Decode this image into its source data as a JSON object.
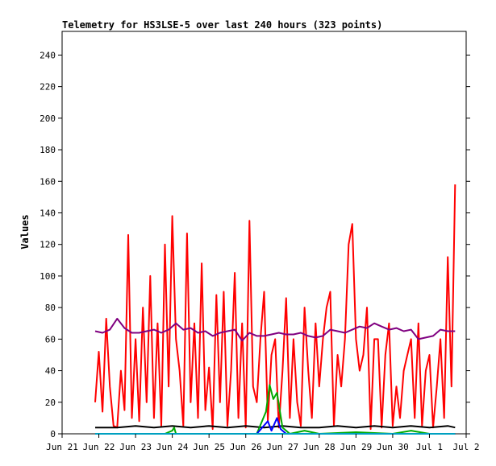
{
  "chart_data": {
    "type": "line",
    "title": "Telemetry for HS3LSE-5 over last 240 hours (323 points)",
    "xlabel": "",
    "ylabel": "Values",
    "x_ticks": [
      "Jun 21",
      "Jun 22",
      "Jun 23",
      "Jun 24",
      "Jun 25",
      "Jun 26",
      "Jun 27",
      "Jun 28",
      "Jun 29",
      "Jun 30",
      "Jul 1",
      "Jul 2"
    ],
    "x_range": [
      "Jun 21 00:00",
      "Jul 2 00:00"
    ],
    "y_ticks": [
      0,
      20,
      40,
      60,
      80,
      100,
      120,
      140,
      160,
      180,
      200,
      220,
      240
    ],
    "ylim": [
      0,
      255
    ],
    "grid": false,
    "legend": "none",
    "series": [
      {
        "color": "#ff0000",
        "x_days": [
          0.9,
          1.0,
          1.1,
          1.2,
          1.3,
          1.4,
          1.5,
          1.6,
          1.7,
          1.8,
          1.9,
          2.0,
          2.1,
          2.2,
          2.3,
          2.4,
          2.5,
          2.6,
          2.7,
          2.8,
          2.9,
          3.0,
          3.1,
          3.2,
          3.3,
          3.4,
          3.5,
          3.6,
          3.7,
          3.8,
          3.9,
          4.0,
          4.1,
          4.2,
          4.3,
          4.4,
          4.5,
          4.6,
          4.7,
          4.8,
          4.9,
          5.0,
          5.1,
          5.2,
          5.3,
          5.4,
          5.5,
          5.6,
          5.7,
          5.8,
          5.9,
          6.0,
          6.1,
          6.2,
          6.3,
          6.4,
          6.5,
          6.6,
          6.7,
          6.8,
          6.9,
          7.0,
          7.1,
          7.2,
          7.3,
          7.4,
          7.5,
          7.6,
          7.7,
          7.8,
          7.9,
          8.0,
          8.1,
          8.2,
          8.3,
          8.4,
          8.5,
          8.6,
          8.7,
          8.8,
          8.9,
          9.0,
          9.1,
          9.2,
          9.3,
          9.4,
          9.5,
          9.6,
          9.7,
          9.8,
          9.9,
          10.0,
          10.1,
          10.2,
          10.3,
          10.4,
          10.5,
          10.6,
          10.7
        ],
        "values": [
          20,
          52,
          14,
          73,
          30,
          5,
          4,
          40,
          15,
          126,
          10,
          60,
          8,
          80,
          20,
          100,
          10,
          70,
          5,
          120,
          30,
          138,
          60,
          40,
          5,
          127,
          20,
          70,
          10,
          108,
          15,
          42,
          3,
          88,
          20,
          90,
          5,
          40,
          102,
          10,
          70,
          4,
          135,
          30,
          20,
          60,
          90,
          8,
          50,
          60,
          4,
          40,
          86,
          10,
          60,
          20,
          5,
          80,
          40,
          10,
          70,
          30,
          60,
          80,
          90,
          5,
          50,
          30,
          60,
          120,
          133,
          60,
          40,
          50,
          80,
          3,
          60,
          60,
          4,
          50,
          70,
          5,
          30,
          10,
          40,
          50,
          60,
          10,
          70,
          5,
          40,
          50,
          4,
          30,
          60,
          10,
          112,
          30,
          158
        ]
      },
      {
        "color": "#800080",
        "x_days": [
          0.9,
          1.1,
          1.3,
          1.5,
          1.7,
          1.9,
          2.1,
          2.3,
          2.5,
          2.7,
          2.9,
          3.1,
          3.3,
          3.5,
          3.7,
          3.9,
          4.1,
          4.3,
          4.5,
          4.7,
          4.9,
          5.1,
          5.3,
          5.5,
          5.7,
          5.9,
          6.1,
          6.3,
          6.5,
          6.7,
          6.9,
          7.1,
          7.3,
          7.5,
          7.7,
          7.9,
          8.1,
          8.3,
          8.5,
          8.7,
          8.9,
          9.1,
          9.3,
          9.5,
          9.7,
          9.9,
          10.1,
          10.3,
          10.5,
          10.7
        ],
        "values": [
          65,
          64,
          66,
          73,
          67,
          64,
          64,
          65,
          66,
          64,
          66,
          70,
          66,
          67,
          64,
          65,
          62,
          64,
          65,
          66,
          59,
          64,
          62,
          62,
          63,
          64,
          63,
          63,
          64,
          62,
          61,
          62,
          66,
          65,
          64,
          66,
          68,
          67,
          70,
          68,
          66,
          67,
          65,
          66,
          60,
          61,
          62,
          66,
          65,
          65
        ]
      },
      {
        "color": "#000000",
        "x_days": [
          0.9,
          1.5,
          2.0,
          2.5,
          3.0,
          3.5,
          4.0,
          4.5,
          5.0,
          5.5,
          6.0,
          6.5,
          7.0,
          7.5,
          8.0,
          8.5,
          9.0,
          9.5,
          10.0,
          10.5,
          10.7
        ],
        "values": [
          4,
          4,
          5,
          4,
          5,
          4,
          5,
          4,
          5,
          4,
          5,
          4,
          4,
          5,
          4,
          5,
          4,
          5,
          4,
          5,
          4
        ]
      },
      {
        "color": "#00aa00",
        "x_days": [
          0.9,
          2.8,
          3.0,
          3.05,
          3.1,
          4.7,
          5.3,
          5.55,
          5.65,
          5.75,
          5.85,
          6.0,
          6.2,
          6.6,
          7.0,
          8.0,
          9.0,
          9.5,
          10.0,
          10.7
        ],
        "values": [
          0,
          0,
          2,
          4,
          0,
          0,
          0,
          14,
          31,
          22,
          26,
          4,
          0,
          2,
          0,
          1,
          0,
          2,
          0,
          0
        ]
      },
      {
        "color": "#0000ff",
        "x_days": [
          0.9,
          5.3,
          5.6,
          5.7,
          5.85,
          5.95,
          6.1,
          10.7
        ],
        "values": [
          0,
          0,
          8,
          2,
          10,
          3,
          0,
          0
        ]
      },
      {
        "color": "#00a0c0",
        "x_days": [
          0.9,
          10.7
        ],
        "values": [
          0,
          0
        ]
      }
    ]
  }
}
